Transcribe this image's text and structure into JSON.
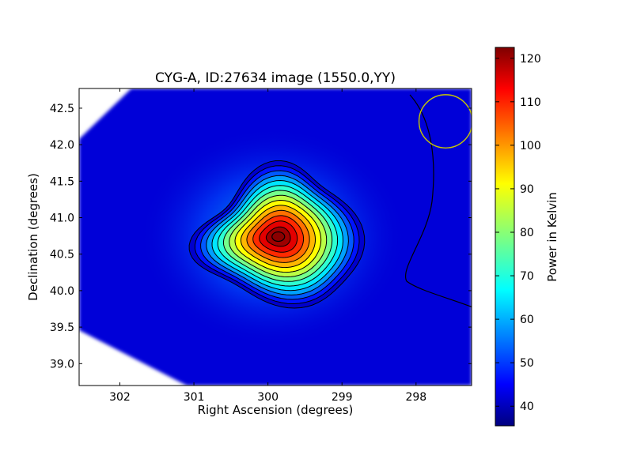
{
  "chart_data": {
    "type": "heatmap",
    "title": "CYG-A, ID:27634 image (1550.0,YY)",
    "xlabel": "Right Ascension (degrees)",
    "ylabel": "Declination (degrees)",
    "xlim": [
      302.55,
      297.25
    ],
    "ylim": [
      38.7,
      42.77
    ],
    "x_ticks": [
      "302",
      "301",
      "300",
      "299",
      "298"
    ],
    "x_tick_values": [
      302,
      301,
      300,
      299,
      298
    ],
    "y_ticks": [
      "39.0",
      "39.5",
      "40.0",
      "40.5",
      "41.0",
      "41.5",
      "42.0",
      "42.5"
    ],
    "y_tick_values": [
      39.0,
      39.5,
      40.0,
      40.5,
      41.0,
      41.5,
      42.0,
      42.5
    ],
    "colorbar": {
      "label": "Power in Kelvin",
      "range": [
        35.5,
        122.5
      ],
      "ticks": [
        "40",
        "50",
        "60",
        "70",
        "80",
        "90",
        "100",
        "110",
        "120"
      ],
      "tick_values": [
        40,
        50,
        60,
        70,
        80,
        90,
        100,
        110,
        120
      ],
      "colormap": "jet"
    },
    "peak": {
      "ra": 299.86,
      "dec": 40.74,
      "value": 122
    },
    "background_level": 37,
    "contour_levels": [
      40,
      46,
      52,
      58,
      64,
      70,
      76,
      82,
      88,
      94,
      100,
      106,
      112,
      118
    ],
    "beam_circle": {
      "ra": 297.6,
      "dec": 42.32,
      "radius_deg": 0.36,
      "color": "#c8c800"
    }
  }
}
